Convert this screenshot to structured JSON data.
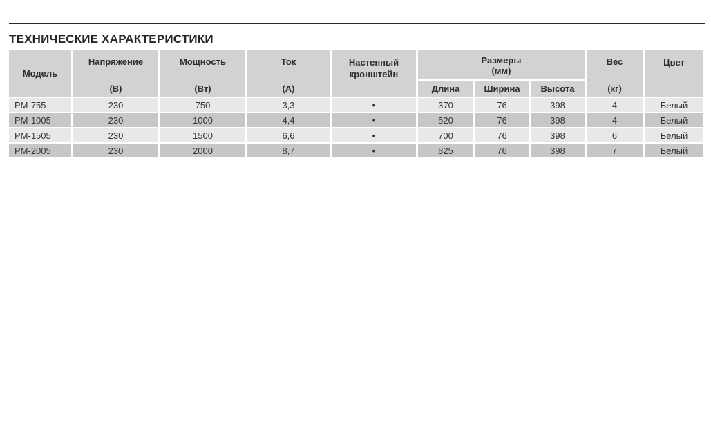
{
  "page": {
    "title": "ТЕХНИЧЕСКИЕ ХАРАКТЕРИСТИКИ"
  },
  "colors": {
    "rule": "#2b2b2b",
    "title_text": "#262626",
    "header_bg": "#d2d2d2",
    "row_light": "#e8e8e8",
    "row_dark": "#c7c7c7",
    "cell_text": "#363636"
  },
  "table": {
    "headers": {
      "model": "Модель",
      "voltage": "Напряжение",
      "voltage_unit": "(В)",
      "power": "Мощность",
      "power_unit": "(Вт)",
      "current": "Ток",
      "current_unit": "(А)",
      "bracket_line1": "Настенный",
      "bracket_line2": "кронштейн",
      "dimensions": "Размеры",
      "dimensions_unit": "(мм)",
      "length": "Длина",
      "width": "Ширина",
      "height": "Высота",
      "weight": "Вес",
      "weight_unit": "(кг)",
      "color": "Цвет"
    },
    "rows": [
      {
        "model": "PM-755",
        "voltage": "230",
        "power": "750",
        "current": "3,3",
        "bracket": "•",
        "length": "370",
        "width": "76",
        "height": "398",
        "weight": "4",
        "color": "Белый"
      },
      {
        "model": "PM-1005",
        "voltage": "230",
        "power": "1000",
        "current": "4,4",
        "bracket": "•",
        "length": "520",
        "width": "76",
        "height": "398",
        "weight": "4",
        "color": "Белый"
      },
      {
        "model": "PM-1505",
        "voltage": "230",
        "power": "1500",
        "current": "6,6",
        "bracket": "•",
        "length": "700",
        "width": "76",
        "height": "398",
        "weight": "6",
        "color": "Белый"
      },
      {
        "model": "PM-2005",
        "voltage": "230",
        "power": "2000",
        "current": "8,7",
        "bracket": "•",
        "length": "825",
        "width": "76",
        "height": "398",
        "weight": "7",
        "color": "Белый"
      }
    ]
  }
}
